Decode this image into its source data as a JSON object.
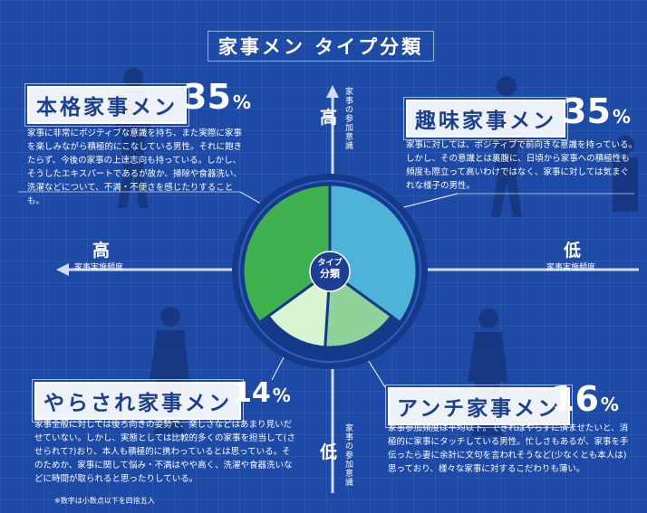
{
  "title": "家事メン タイプ分類",
  "center_label": {
    "line1": "タイプ",
    "line2": "分類"
  },
  "axes": {
    "vertical_high": "高",
    "vertical_low": "低",
    "vertical_label_top": "家事の参加意識",
    "vertical_label_bottom": "家事の参加意識",
    "horizontal_high": "高",
    "horizontal_low": "低",
    "horizontal_label_left": "家事実施頻度",
    "horizontal_label_right": "家事実施頻度"
  },
  "types": [
    {
      "name": "本格家事メン",
      "percent": "35",
      "unit": "%",
      "description": "家事に非常にポジティブな意識を持ち、また実際に家事を楽しみながら積極的にこなしている男性。それに飽きたらず、今後の家事の上達志向も持っている。しかし、そうしたエキスパートであるが故か、掃除や食器洗い、洗濯などについて、不満・不便さを感じたりすることも。"
    },
    {
      "name": "趣味家事メン",
      "percent": "35",
      "unit": "%",
      "description": "家事に対しては、ポジティブで前向きな意識を持っている。しかし、その意識とは裏腹に、日頃から家事への積極性も頻度も際立って高いわけではなく、家事に対しては気まぐれな様子の男性。"
    },
    {
      "name": "やらされ家事メン",
      "percent": "14",
      "unit": "%",
      "description": "家事全般に対しては後ろ向きの姿勢で、楽しさなどはあまり見いだせていない。しかし、実態としては比較的多くの家事を担当して(させられて?)おり、本人も積極的に携わっているとは思っている。そのためか、家事に関して悩み・不満はやや高く、洗濯や食器洗いなどに時間が取られると思ったりしている。"
    },
    {
      "name": "アンチ家事メン",
      "percent": "16",
      "unit": "%",
      "description": "家事参加頻度は平均以下。できればやらずに済ませたいと、消極的に家事にタッチしている男性。忙しさもあるが、家事を手伝ったら妻に余計に文句を言われそうなど(少なくとも本人は)思っており、様々な家事に対するこだわりも薄い。"
    }
  ],
  "pie": {
    "slices": [
      {
        "name": "趣味家事メン",
        "value": 35,
        "color": "#4fb3d9"
      },
      {
        "name": "アンチ家事メン",
        "value": 16,
        "color": "#8fd39a"
      },
      {
        "name": "やらされ家事メン",
        "value": 14,
        "color": "#d8f5d2"
      },
      {
        "name": "本格家事メン",
        "value": 35,
        "color": "#3fb24f"
      }
    ]
  },
  "footnote": "※数字は小数点以下を四捨五入"
}
